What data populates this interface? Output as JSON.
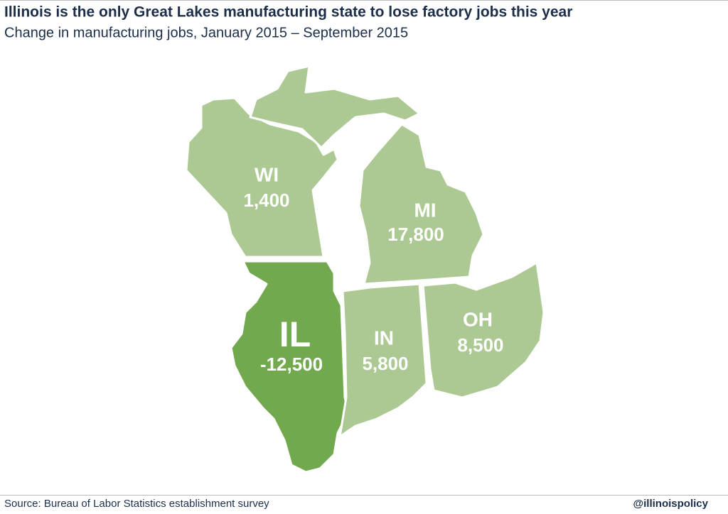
{
  "header": {
    "title": "Illinois is the only Great Lakes manufacturing state to lose factory jobs this year",
    "subtitle": "Change in manufacturing jobs, January 2015 – September 2015"
  },
  "states": [
    {
      "code": "WI",
      "value": "1,400"
    },
    {
      "code": "MI",
      "value": "17,800"
    },
    {
      "code": "IL",
      "value": "-12,500"
    },
    {
      "code": "IN",
      "value": "5,800"
    },
    {
      "code": "OH",
      "value": "8,500"
    }
  ],
  "footer": {
    "source": "Source: Bureau of Labor Statistics establishment survey",
    "handle": "@illinoispolicy"
  }
}
